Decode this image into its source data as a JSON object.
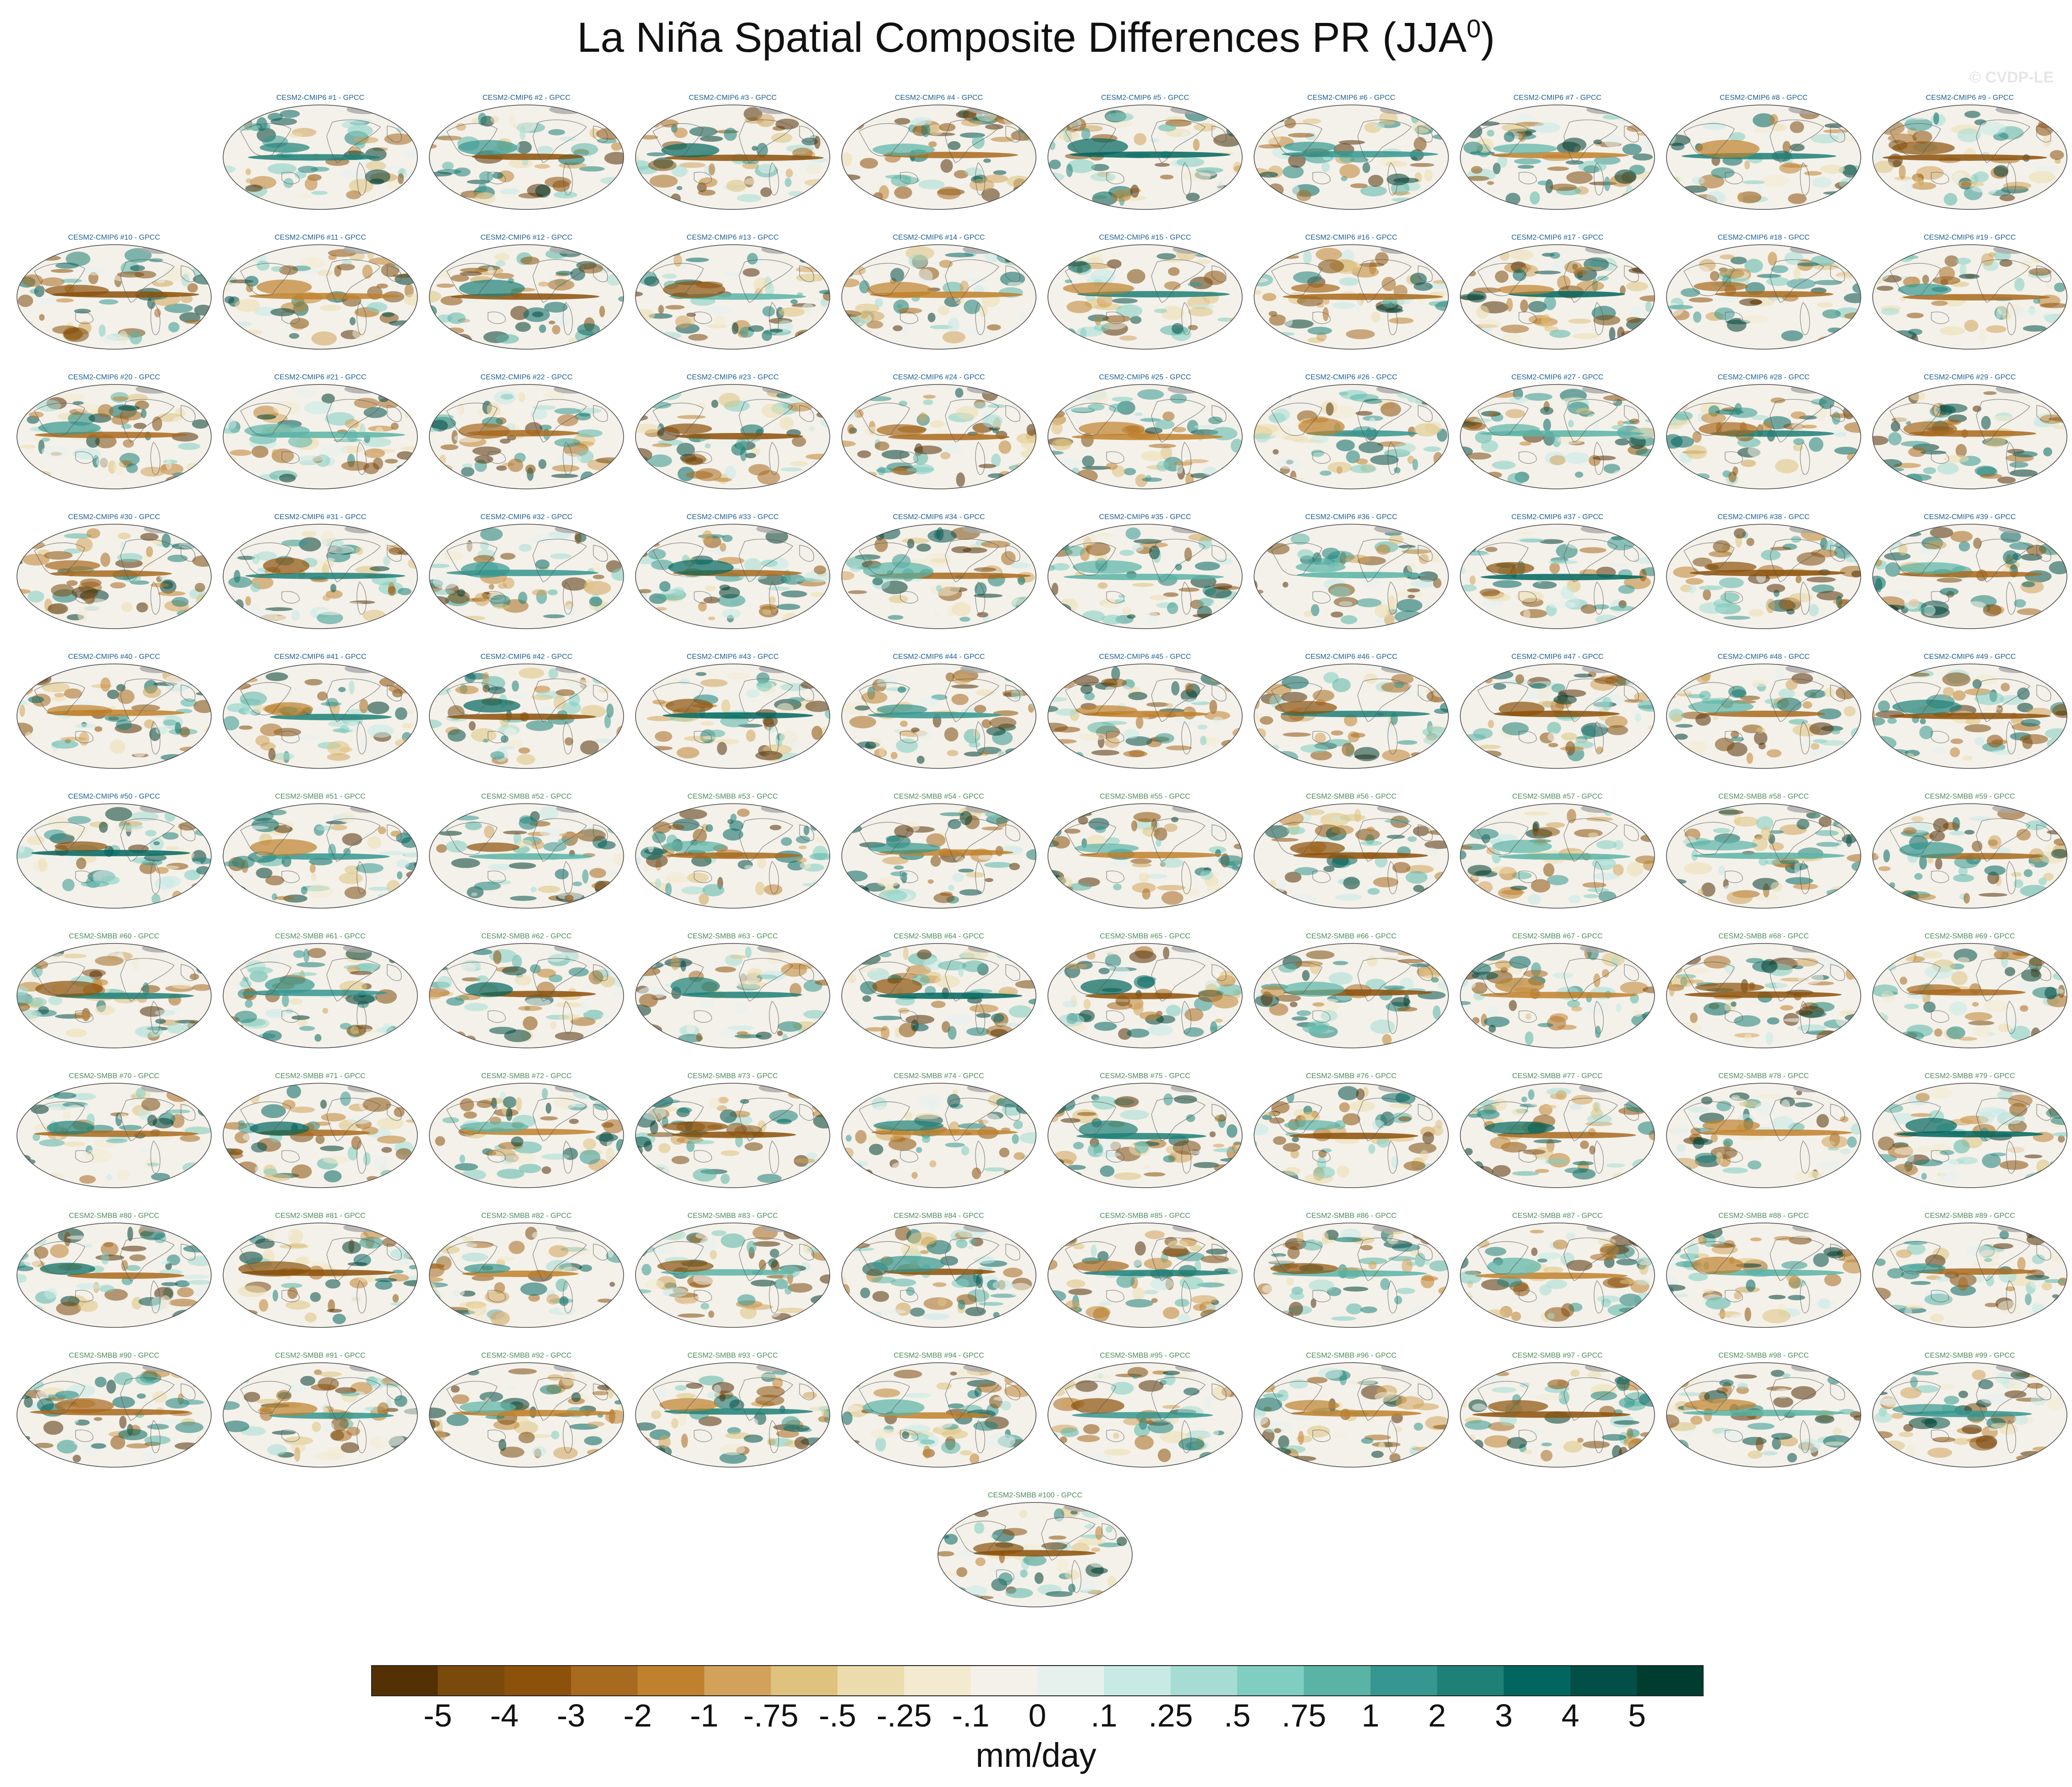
{
  "title_main": "La Niña Spatial Composite Differences PR (JJA",
  "title_sup": "0",
  "title_close": ")",
  "watermark": "© CVDP-LE",
  "colorbar_units": "mm/day",
  "chart_data": {
    "type": "heatmap",
    "projection": "global map panels (ellipse)",
    "units": "mm/day",
    "panel_titles": [
      "CESM2-CMIP6 #1 - GPCC",
      "CESM2-CMIP6 #2 - GPCC",
      "CESM2-CMIP6 #3 - GPCC",
      "CESM2-CMIP6 #4 - GPCC",
      "CESM2-CMIP6 #5 - GPCC",
      "CESM2-CMIP6 #6 - GPCC",
      "CESM2-CMIP6 #7 - GPCC",
      "CESM2-CMIP6 #8 - GPCC",
      "CESM2-CMIP6 #9 - GPCC",
      "CESM2-CMIP6 #10 - GPCC",
      "CESM2-CMIP6 #11 - GPCC",
      "CESM2-CMIP6 #12 - GPCC",
      "CESM2-CMIP6 #13 - GPCC",
      "CESM2-CMIP6 #14 - GPCC",
      "CESM2-CMIP6 #15 - GPCC",
      "CESM2-CMIP6 #16 - GPCC",
      "CESM2-CMIP6 #17 - GPCC",
      "CESM2-CMIP6 #18 - GPCC",
      "CESM2-CMIP6 #19 - GPCC",
      "CESM2-CMIP6 #20 - GPCC",
      "CESM2-CMIP6 #21 - GPCC",
      "CESM2-CMIP6 #22 - GPCC",
      "CESM2-CMIP6 #23 - GPCC",
      "CESM2-CMIP6 #24 - GPCC",
      "CESM2-CMIP6 #25 - GPCC",
      "CESM2-CMIP6 #26 - GPCC",
      "CESM2-CMIP6 #27 - GPCC",
      "CESM2-CMIP6 #28 - GPCC",
      "CESM2-CMIP6 #29 - GPCC",
      "CESM2-CMIP6 #30 - GPCC",
      "CESM2-CMIP6 #31 - GPCC",
      "CESM2-CMIP6 #32 - GPCC",
      "CESM2-CMIP6 #33 - GPCC",
      "CESM2-CMIP6 #34 - GPCC",
      "CESM2-CMIP6 #35 - GPCC",
      "CESM2-CMIP6 #36 - GPCC",
      "CESM2-CMIP6 #37 - GPCC",
      "CESM2-CMIP6 #38 - GPCC",
      "CESM2-CMIP6 #39 - GPCC",
      "CESM2-CMIP6 #40 - GPCC",
      "CESM2-CMIP6 #41 - GPCC",
      "CESM2-CMIP6 #42 - GPCC",
      "CESM2-CMIP6 #43 - GPCC",
      "CESM2-CMIP6 #44 - GPCC",
      "CESM2-CMIP6 #45 - GPCC",
      "CESM2-CMIP6 #46 - GPCC",
      "CESM2-CMIP6 #47 - GPCC",
      "CESM2-CMIP6 #48 - GPCC",
      "CESM2-CMIP6 #49 - GPCC",
      "CESM2-CMIP6 #50 - GPCC",
      "CESM2-SMBB #51 - GPCC",
      "CESM2-SMBB #52 - GPCC",
      "CESM2-SMBB #53 - GPCC",
      "CESM2-SMBB #54 - GPCC",
      "CESM2-SMBB #55 - GPCC",
      "CESM2-SMBB #56 - GPCC",
      "CESM2-SMBB #57 - GPCC",
      "CESM2-SMBB #58 - GPCC",
      "CESM2-SMBB #59 - GPCC",
      "CESM2-SMBB #60 - GPCC",
      "CESM2-SMBB #61 - GPCC",
      "CESM2-SMBB #62 - GPCC",
      "CESM2-SMBB #63 - GPCC",
      "CESM2-SMBB #64 - GPCC",
      "CESM2-SMBB #65 - GPCC",
      "CESM2-SMBB #66 - GPCC",
      "CESM2-SMBB #67 - GPCC",
      "CESM2-SMBB #68 - GPCC",
      "CESM2-SMBB #69 - GPCC",
      "CESM2-SMBB #70 - GPCC",
      "CESM2-SMBB #71 - GPCC",
      "CESM2-SMBB #72 - GPCC",
      "CESM2-SMBB #73 - GPCC",
      "CESM2-SMBB #74 - GPCC",
      "CESM2-SMBB #75 - GPCC",
      "CESM2-SMBB #76 - GPCC",
      "CESM2-SMBB #77 - GPCC",
      "CESM2-SMBB #78 - GPCC",
      "CESM2-SMBB #79 - GPCC",
      "CESM2-SMBB #80 - GPCC",
      "CESM2-SMBB #81 - GPCC",
      "CESM2-SMBB #82 - GPCC",
      "CESM2-SMBB #83 - GPCC",
      "CESM2-SMBB #84 - GPCC",
      "CESM2-SMBB #85 - GPCC",
      "CESM2-SMBB #86 - GPCC",
      "CESM2-SMBB #87 - GPCC",
      "CESM2-SMBB #88 - GPCC",
      "CESM2-SMBB #89 - GPCC",
      "CESM2-SMBB #90 - GPCC",
      "CESM2-SMBB #91 - GPCC",
      "CESM2-SMBB #92 - GPCC",
      "CESM2-SMBB #93 - GPCC",
      "CESM2-SMBB #94 - GPCC",
      "CESM2-SMBB #95 - GPCC",
      "CESM2-SMBB #96 - GPCC",
      "CESM2-SMBB #97 - GPCC",
      "CESM2-SMBB #98 - GPCC",
      "CESM2-SMBB #99 - GPCC",
      "CESM2-SMBB #100 - GPCC"
    ],
    "colorbar_labels": [
      "-5",
      "-4",
      "-3",
      "-2",
      "-1",
      "-.75",
      "-.5",
      "-.25",
      "-.1",
      "0",
      ".1",
      ".25",
      ".5",
      ".75",
      "1",
      "2",
      "3",
      "4",
      "5"
    ],
    "colorbar_colors": [
      "#543005",
      "#7a4a0c",
      "#8c510a",
      "#a86a1f",
      "#bf812d",
      "#d2a25a",
      "#dfc27d",
      "#ecdcad",
      "#f3ead0",
      "#f4f1ea",
      "#e6f1ee",
      "#c7eae5",
      "#a6dcd3",
      "#80cdc1",
      "#5ab4a6",
      "#35978f",
      "#1e8077",
      "#01665e",
      "#024f47",
      "#003c30"
    ]
  }
}
